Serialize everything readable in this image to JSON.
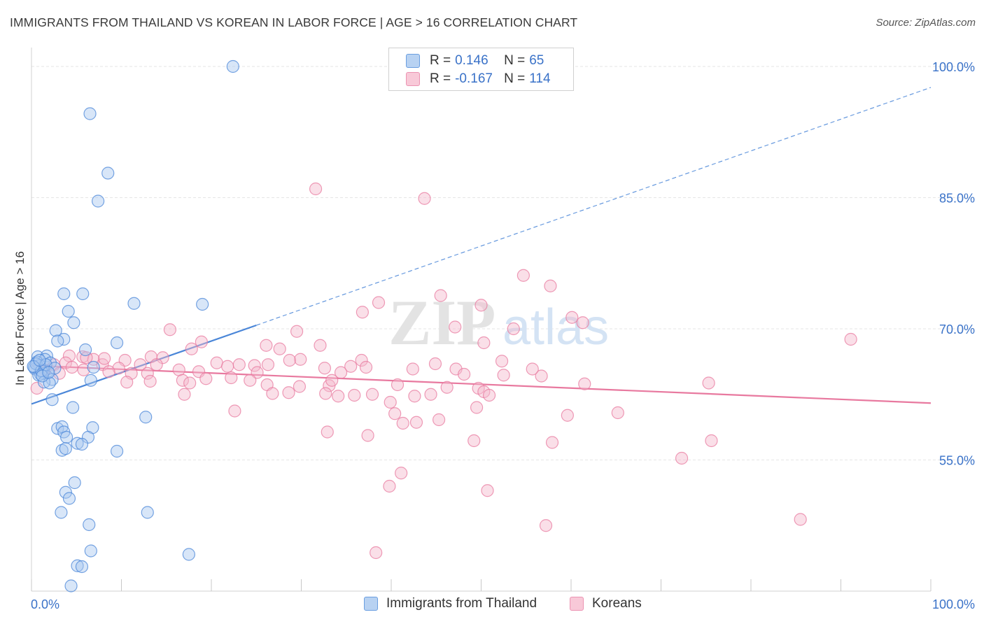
{
  "title": "IMMIGRANTS FROM THAILAND VS KOREAN IN LABOR FORCE | AGE > 16 CORRELATION CHART",
  "source": "Source: ZipAtlas.com",
  "watermark": {
    "zip": "ZIP",
    "atlas": "atlas"
  },
  "legend": {
    "rows": [
      {
        "r_label": "R =",
        "r_value": "0.146",
        "n_label": "N =",
        "n_value": "65",
        "color": "#4a86d8"
      },
      {
        "r_label": "R =",
        "r_value": "-0.167",
        "n_label": "N =",
        "n_value": "114",
        "color": "#e8799f"
      }
    ]
  },
  "bottom_legend": [
    "Immigrants from Thailand",
    "Koreans"
  ],
  "chart_data": {
    "type": "scatter",
    "xlabel": "",
    "ylabel": "In Labor Force | Age > 16",
    "xlim": [
      0,
      100
    ],
    "ylim": [
      40,
      102
    ],
    "x_tick_labels": [
      "0.0%",
      "100.0%"
    ],
    "y_ticks": [
      55,
      70,
      85,
      100
    ],
    "y_tick_labels": [
      "55.0%",
      "70.0%",
      "85.0%",
      "100.0%"
    ],
    "grid": true,
    "series": [
      {
        "name": "Immigrants from Thailand",
        "color": "#4a86d8",
        "fill": "#a9c8f0",
        "trend": {
          "x": [
            0,
            25
          ],
          "y": [
            61.4,
            70.4
          ],
          "dashed_to": [
            100,
            97.6
          ]
        },
        "points": [
          [
            22.4,
            100.0
          ],
          [
            6.5,
            94.6
          ],
          [
            8.5,
            87.8
          ],
          [
            7.4,
            84.6
          ],
          [
            3.6,
            74.0
          ],
          [
            5.7,
            74.0
          ],
          [
            11.4,
            72.9
          ],
          [
            19.0,
            72.8
          ],
          [
            4.1,
            72.0
          ],
          [
            4.7,
            70.7
          ],
          [
            2.7,
            69.8
          ],
          [
            3.6,
            68.8
          ],
          [
            2.9,
            68.6
          ],
          [
            9.5,
            68.4
          ],
          [
            6.0,
            67.6
          ],
          [
            0.7,
            66.8
          ],
          [
            1.7,
            66.9
          ],
          [
            1.5,
            66.5
          ],
          [
            0.6,
            66.2
          ],
          [
            2.1,
            66.1
          ],
          [
            0.9,
            65.8
          ],
          [
            0.4,
            65.4
          ],
          [
            1.8,
            65.1
          ],
          [
            1.3,
            64.9
          ],
          [
            1.0,
            64.8
          ],
          [
            0.8,
            64.7
          ],
          [
            2.3,
            64.2
          ],
          [
            1.4,
            63.9
          ],
          [
            2.0,
            63.8
          ],
          [
            6.6,
            64.1
          ],
          [
            6.9,
            65.6
          ],
          [
            2.3,
            61.9
          ],
          [
            4.6,
            61.0
          ],
          [
            12.7,
            59.9
          ],
          [
            2.9,
            58.6
          ],
          [
            3.4,
            58.8
          ],
          [
            6.8,
            58.7
          ],
          [
            3.6,
            58.2
          ],
          [
            3.9,
            57.6
          ],
          [
            6.3,
            57.6
          ],
          [
            5.1,
            56.9
          ],
          [
            5.6,
            56.8
          ],
          [
            3.4,
            56.1
          ],
          [
            9.5,
            56.0
          ],
          [
            3.8,
            56.3
          ],
          [
            4.8,
            52.4
          ],
          [
            3.8,
            51.3
          ],
          [
            4.2,
            50.6
          ],
          [
            3.3,
            49.0
          ],
          [
            12.9,
            49.0
          ],
          [
            6.4,
            47.6
          ],
          [
            6.6,
            44.6
          ],
          [
            17.5,
            44.2
          ],
          [
            5.1,
            42.9
          ],
          [
            5.6,
            42.8
          ],
          [
            4.4,
            40.6
          ],
          [
            0.3,
            65.6
          ],
          [
            0.5,
            66.0
          ],
          [
            1.1,
            65.2
          ],
          [
            1.6,
            65.9
          ],
          [
            0.2,
            65.7
          ],
          [
            2.6,
            65.5
          ],
          [
            1.2,
            64.6
          ],
          [
            0.9,
            66.4
          ],
          [
            1.9,
            65.0
          ]
        ]
      },
      {
        "name": "Koreans",
        "color": "#e8799f",
        "fill": "#f4b9cc",
        "trend": {
          "x": [
            0,
            100
          ],
          "y": [
            65.8,
            61.5
          ]
        },
        "points": [
          [
            31.6,
            86.0
          ],
          [
            43.7,
            84.9
          ],
          [
            54.7,
            76.1
          ],
          [
            57.7,
            74.9
          ],
          [
            45.5,
            73.8
          ],
          [
            38.6,
            73.0
          ],
          [
            50.0,
            72.7
          ],
          [
            36.8,
            71.9
          ],
          [
            60.1,
            71.3
          ],
          [
            61.3,
            70.7
          ],
          [
            15.4,
            69.9
          ],
          [
            47.1,
            70.2
          ],
          [
            53.6,
            70.0
          ],
          [
            29.5,
            69.7
          ],
          [
            91.1,
            68.8
          ],
          [
            18.9,
            68.5
          ],
          [
            50.3,
            68.4
          ],
          [
            26.1,
            68.1
          ],
          [
            32.1,
            68.1
          ],
          [
            27.6,
            67.7
          ],
          [
            17.8,
            67.7
          ],
          [
            4.2,
            66.9
          ],
          [
            5.7,
            66.8
          ],
          [
            6.9,
            66.5
          ],
          [
            13.3,
            66.8
          ],
          [
            14.6,
            66.7
          ],
          [
            10.4,
            66.4
          ],
          [
            29.9,
            66.5
          ],
          [
            28.7,
            66.4
          ],
          [
            36.7,
            66.4
          ],
          [
            52.3,
            66.3
          ],
          [
            20.6,
            66.1
          ],
          [
            24.8,
            65.8
          ],
          [
            3.8,
            66.1
          ],
          [
            4.5,
            65.6
          ],
          [
            7.9,
            65.9
          ],
          [
            9.7,
            65.5
          ],
          [
            12.1,
            65.9
          ],
          [
            13.9,
            65.9
          ],
          [
            21.8,
            65.7
          ],
          [
            23.1,
            65.9
          ],
          [
            26.3,
            65.9
          ],
          [
            32.6,
            65.5
          ],
          [
            35.5,
            65.7
          ],
          [
            37.2,
            65.6
          ],
          [
            42.4,
            65.4
          ],
          [
            47.2,
            65.4
          ],
          [
            8.6,
            65.1
          ],
          [
            11.1,
            64.9
          ],
          [
            12.9,
            64.9
          ],
          [
            16.4,
            65.3
          ],
          [
            18.6,
            65.1
          ],
          [
            25.1,
            65.0
          ],
          [
            34.4,
            65.0
          ],
          [
            48.1,
            64.8
          ],
          [
            56.7,
            64.6
          ],
          [
            52.5,
            64.7
          ],
          [
            22.2,
            64.4
          ],
          [
            16.8,
            64.1
          ],
          [
            19.4,
            64.3
          ],
          [
            24.3,
            64.1
          ],
          [
            10.6,
            63.9
          ],
          [
            13.2,
            64.0
          ],
          [
            17.6,
            63.8
          ],
          [
            26.2,
            63.6
          ],
          [
            29.8,
            63.4
          ],
          [
            33.1,
            63.5
          ],
          [
            40.7,
            63.6
          ],
          [
            46.2,
            63.3
          ],
          [
            49.7,
            63.2
          ],
          [
            61.5,
            63.7
          ],
          [
            75.3,
            63.8
          ],
          [
            17.0,
            62.5
          ],
          [
            28.6,
            62.7
          ],
          [
            32.7,
            62.6
          ],
          [
            37.9,
            62.5
          ],
          [
            42.6,
            62.3
          ],
          [
            44.4,
            62.5
          ],
          [
            50.3,
            62.8
          ],
          [
            34.1,
            62.3
          ],
          [
            50.9,
            62.4
          ],
          [
            39.9,
            61.6
          ],
          [
            40.4,
            60.3
          ],
          [
            59.6,
            60.1
          ],
          [
            65.2,
            60.4
          ],
          [
            41.3,
            59.2
          ],
          [
            42.8,
            59.3
          ],
          [
            45.3,
            59.6
          ],
          [
            49.5,
            61.0
          ],
          [
            32.9,
            58.2
          ],
          [
            37.4,
            57.8
          ],
          [
            49.2,
            57.2
          ],
          [
            57.9,
            57.0
          ],
          [
            75.6,
            57.2
          ],
          [
            72.3,
            55.2
          ],
          [
            41.1,
            53.5
          ],
          [
            39.8,
            52.0
          ],
          [
            50.7,
            51.5
          ],
          [
            57.2,
            47.5
          ],
          [
            85.5,
            48.2
          ],
          [
            38.3,
            44.4
          ],
          [
            5.8,
            65.3
          ],
          [
            2.5,
            65.9
          ],
          [
            3.1,
            64.9
          ],
          [
            0.6,
            63.2
          ],
          [
            1.5,
            65.3
          ],
          [
            8.1,
            66.6
          ],
          [
            6.1,
            66.7
          ],
          [
            22.6,
            60.6
          ],
          [
            33.4,
            64.1
          ],
          [
            44.9,
            66.0
          ],
          [
            55.7,
            65.4
          ],
          [
            26.8,
            62.6
          ],
          [
            35.9,
            62.4
          ]
        ]
      }
    ]
  }
}
